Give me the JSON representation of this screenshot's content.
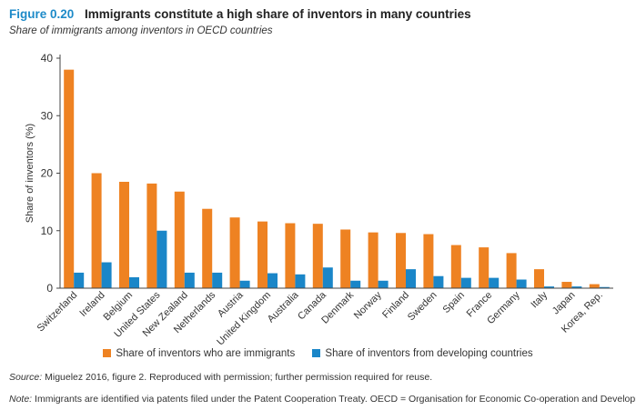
{
  "figure": {
    "number": "Figure 0.20",
    "title": "Immigrants constitute a high share of inventors in many countries",
    "subtitle": "Share of immigrants among inventors in OECD countries"
  },
  "colors": {
    "immigrants": "#ee8222",
    "developing": "#1a86c8",
    "axis": "#444444",
    "text": "#333333"
  },
  "chart_data": {
    "type": "bar",
    "ylabel": "Share of inventors (%)",
    "xlabel": "",
    "ylim": [
      0,
      40
    ],
    "yticks": [
      0,
      10,
      20,
      30,
      40
    ],
    "grid": false,
    "legend_position": "bottom",
    "categories": [
      "Switzerland",
      "Ireland",
      "Belgium",
      "United States",
      "New Zealand",
      "Netherlands",
      "Austria",
      "United Kingdom",
      "Australia",
      "Canada",
      "Denmark",
      "Norway",
      "Finland",
      "Sweden",
      "Spain",
      "France",
      "Germany",
      "Italy",
      "Japan",
      "Korea, Rep."
    ],
    "series": [
      {
        "name": "Share of inventors who are immigrants",
        "values": [
          38.0,
          20.0,
          18.5,
          18.2,
          16.8,
          13.8,
          12.3,
          11.6,
          11.3,
          11.2,
          10.2,
          9.7,
          9.6,
          9.4,
          7.5,
          7.1,
          6.1,
          3.3,
          1.1,
          0.7
        ]
      },
      {
        "name": "Share of inventors from developing countries",
        "values": [
          2.7,
          4.5,
          1.9,
          10.0,
          2.7,
          2.7,
          1.3,
          2.6,
          2.4,
          3.6,
          1.3,
          1.3,
          3.3,
          2.1,
          1.8,
          1.8,
          1.5,
          0.3,
          0.3,
          0.2
        ]
      }
    ]
  },
  "source": {
    "label": "Source:",
    "text": "Miguelez 2016, figure 2. Reproduced with permission; further permission required for reuse."
  },
  "note": {
    "label": "Note:",
    "text": "Immigrants are identified via patents filed under the Patent Cooperation Treaty. OECD = Organisation for Economic Co-operation and Development."
  }
}
